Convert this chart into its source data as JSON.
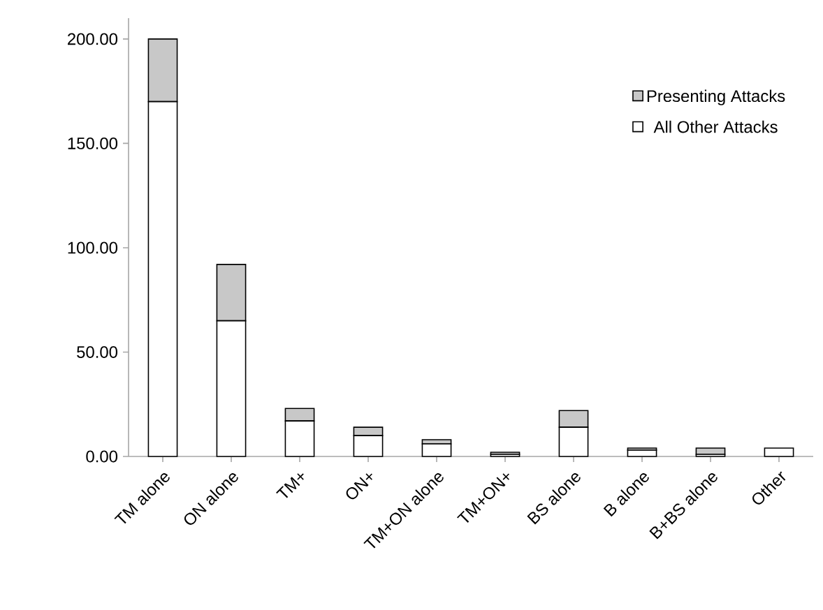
{
  "chart_data": {
    "type": "bar",
    "stacked": true,
    "categories": [
      "TM alone",
      "ON alone",
      "TM+",
      "ON+",
      "TM+ON alone",
      "TM+ON+",
      "BS alone",
      "B alone",
      "B+BS alone",
      "Other"
    ],
    "series": [
      {
        "name": "All Other Attacks",
        "color": "#ffffff",
        "values": [
          170,
          65,
          17,
          10,
          6,
          1,
          14,
          3,
          1,
          4
        ]
      },
      {
        "name": "Presenting Attacks",
        "color": "#c8c8c8",
        "values": [
          30,
          27,
          6,
          4,
          2,
          1,
          8,
          1,
          3,
          0
        ]
      }
    ],
    "ylim": [
      0,
      210
    ],
    "yticks": [
      {
        "value": 0,
        "label": "0.00"
      },
      {
        "value": 50,
        "label": "50.00"
      },
      {
        "value": 100,
        "label": "100.00"
      },
      {
        "value": 150,
        "label": "150.00"
      },
      {
        "value": 200,
        "label": "200.00"
      }
    ],
    "grid": false,
    "legend": "top right"
  }
}
